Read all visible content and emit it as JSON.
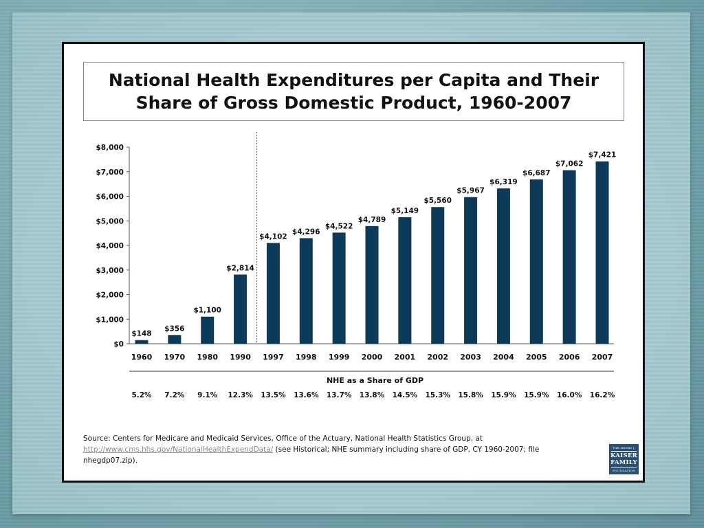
{
  "slide": {
    "title_line1": "National Health Expenditures per Capita and Their",
    "title_line2": "Share of Gross Domestic Product, 1960-2007",
    "source_text_1": "Source: Centers for Medicare and Medicaid Services, Office of the Actuary, National Health Statistics Group, at",
    "source_link": "http://www.cms.hhs.gov/NationalHealthExpendData/",
    "source_text_2": " (see Historical; NHE summary including share of GDP, CY 1960-2007; file",
    "source_text_3": "nhegdp07.zip).",
    "logo": {
      "line1": "THE HENRY J.",
      "line2": "KAISER",
      "line3": "FAMILY",
      "line4": "FOUNDATION"
    }
  },
  "colors": {
    "bar": "#0e3a59",
    "axis": "#555555",
    "background": "#ffffff"
  },
  "chart_data": {
    "type": "bar",
    "title": "National Health Expenditures per Capita and Their Share of Gross Domestic Product, 1960-2007",
    "xlabel": "",
    "ylabel": "",
    "ylim": [
      0,
      8000
    ],
    "yticks": [
      0,
      1000,
      2000,
      3000,
      4000,
      5000,
      6000,
      7000,
      8000
    ],
    "ytick_labels": [
      "$0",
      "$1,000",
      "$2,000",
      "$3,000",
      "$4,000",
      "$5,000",
      "$6,000",
      "$7,000",
      "$8,000"
    ],
    "categories": [
      "1960",
      "1970",
      "1980",
      "1990",
      "1997",
      "1998",
      "1999",
      "2000",
      "2001",
      "2002",
      "2003",
      "2004",
      "2005",
      "2006",
      "2007"
    ],
    "values": [
      148,
      356,
      1100,
      2814,
      4102,
      4296,
      4522,
      4789,
      5149,
      5560,
      5967,
      6319,
      6687,
      7062,
      7421
    ],
    "value_labels": [
      "$148",
      "$356",
      "$1,100",
      "$2,814",
      "$4,102",
      "$4,296",
      "$4,522",
      "$4,789",
      "$5,149",
      "$5,560",
      "$5,967",
      "$6,319",
      "$6,687",
      "$7,062",
      "$7,421"
    ],
    "divider_after": "1990",
    "gdp_share_heading": "NHE as a Share of GDP",
    "gdp_share": [
      "5.2%",
      "7.2%",
      "9.1%",
      "12.3%",
      "13.5%",
      "13.6%",
      "13.7%",
      "13.8%",
      "14.5%",
      "15.3%",
      "15.8%",
      "15.9%",
      "15.9%",
      "16.0%",
      "16.2%"
    ],
    "grid": false,
    "legend": "none"
  }
}
